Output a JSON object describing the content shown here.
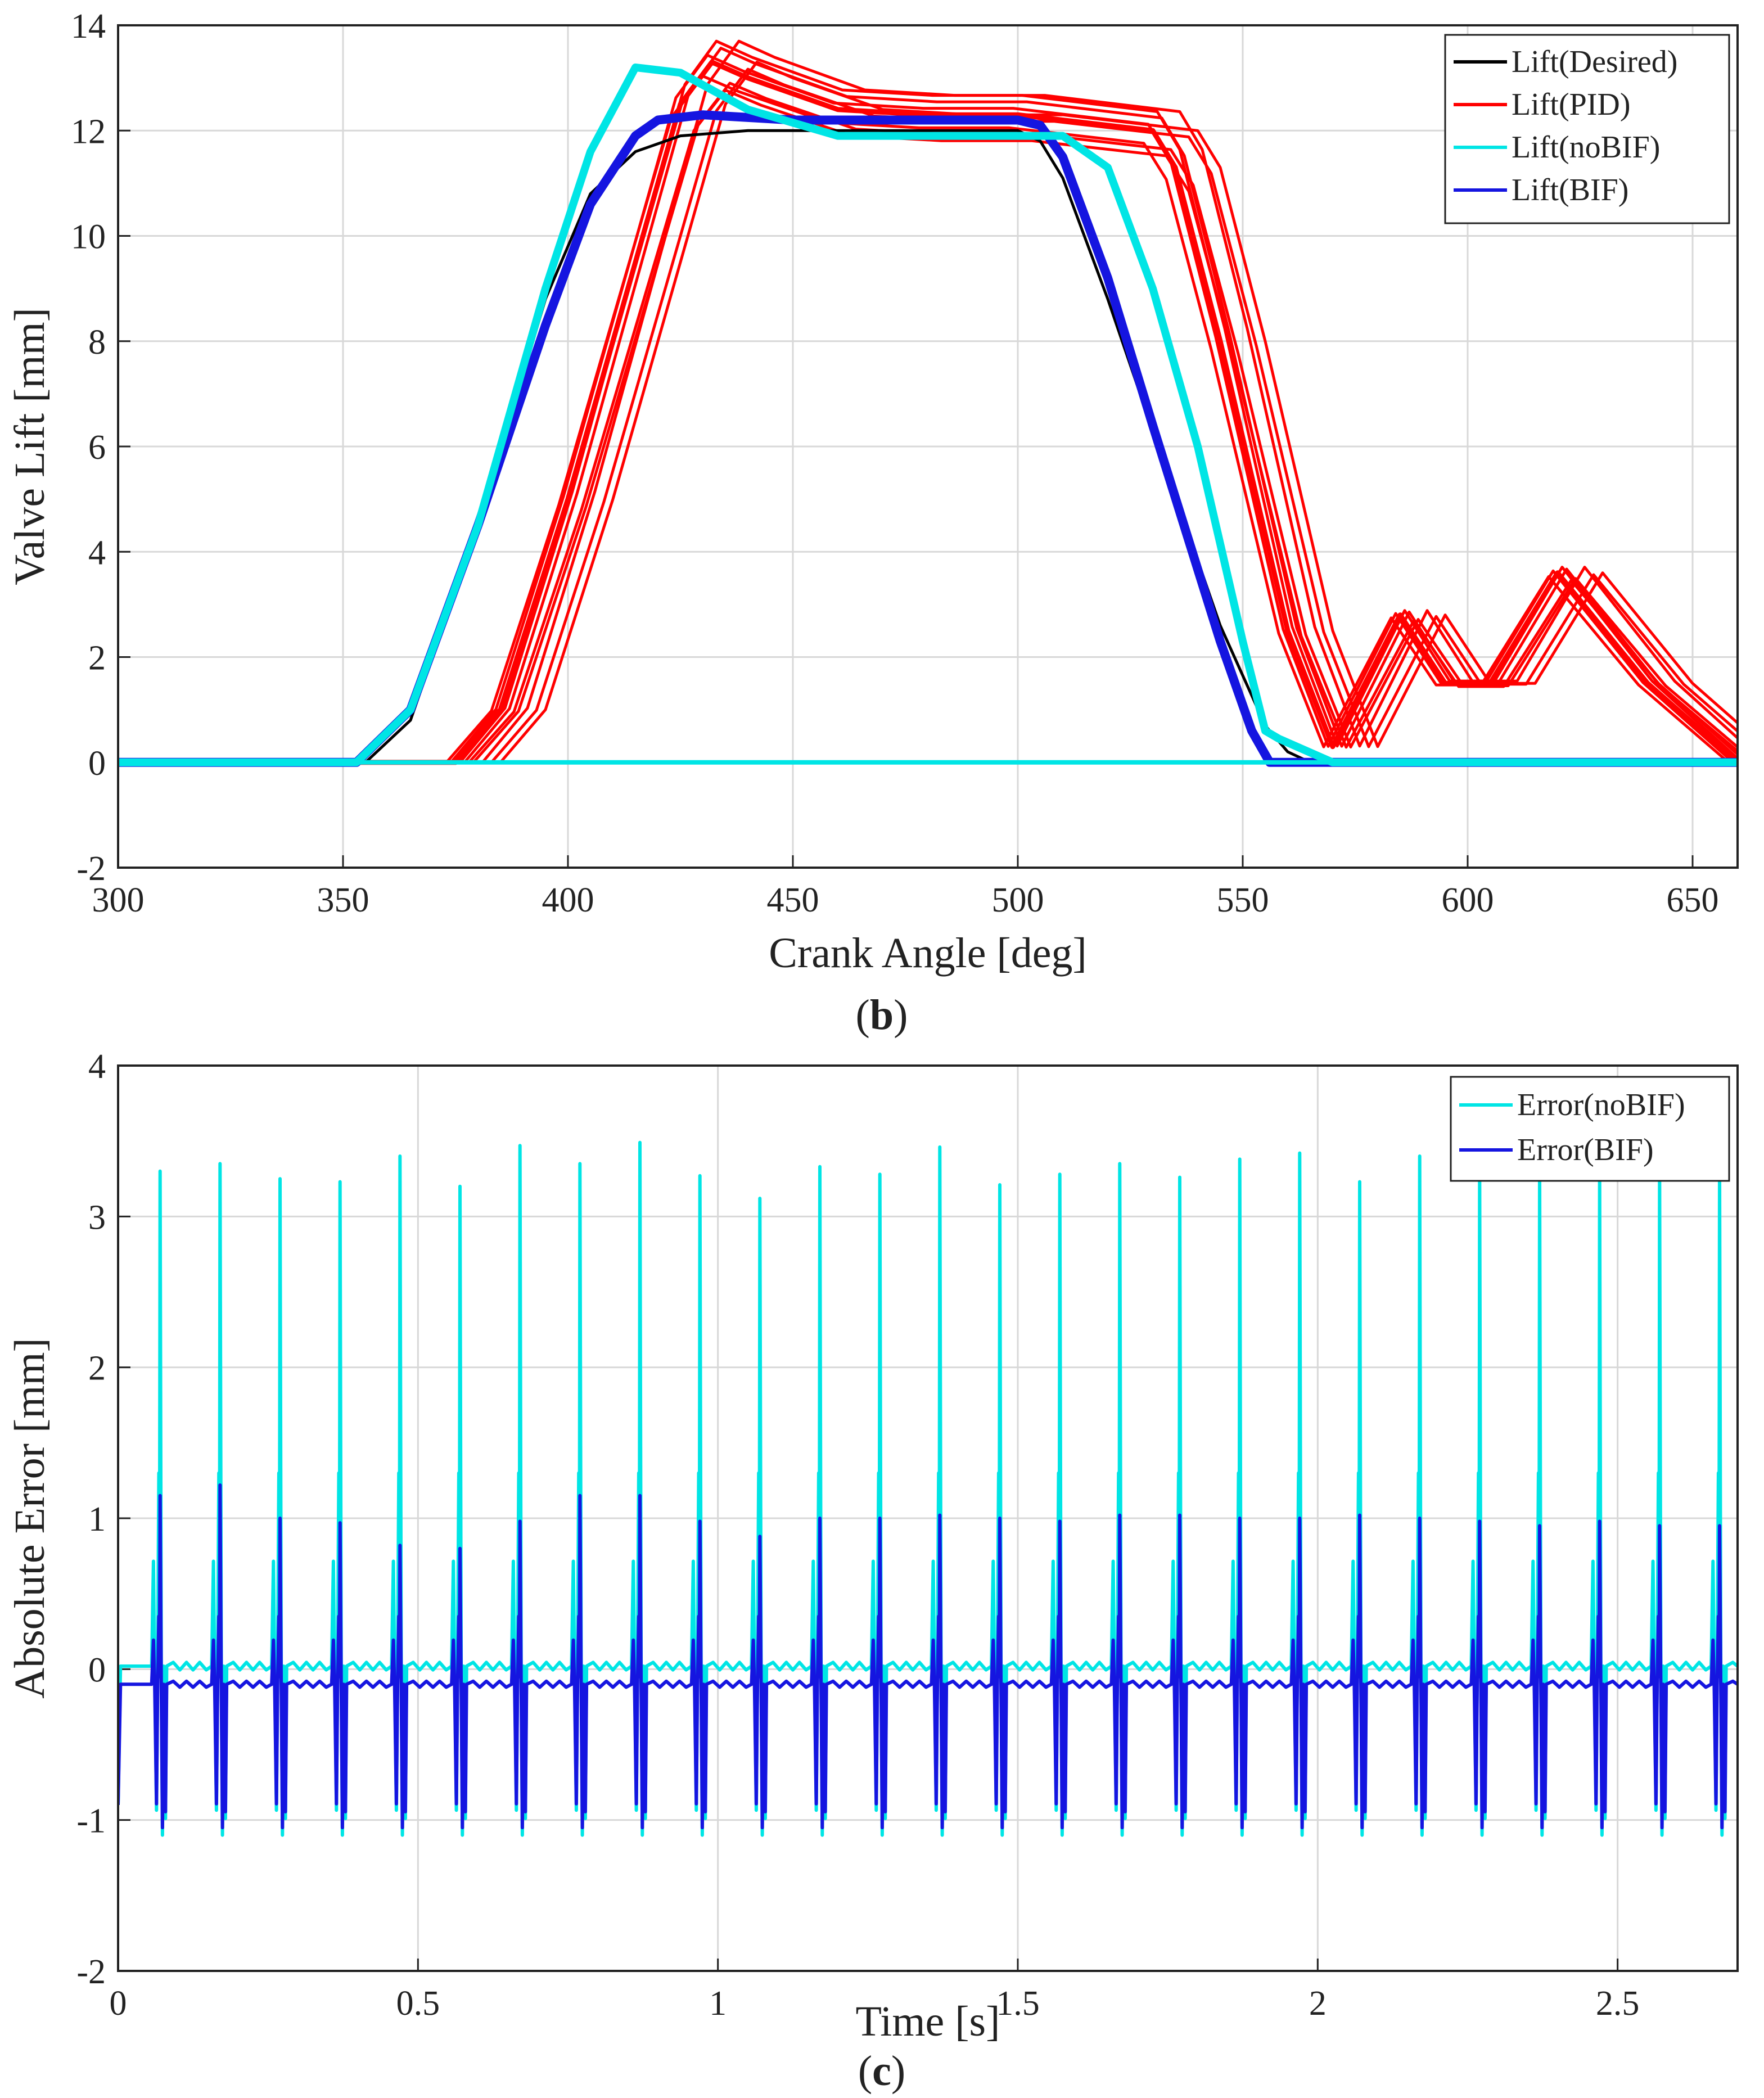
{
  "chart_data": [
    {
      "type": "line",
      "panel_label": "b",
      "xlabel": "Crank Angle [deg]",
      "ylabel": "Valve Lift [mm]",
      "xlim": [
        300,
        660
      ],
      "ylim": [
        -2,
        14
      ],
      "x_ticks": [
        300,
        350,
        400,
        450,
        500,
        550,
        600,
        650
      ],
      "y_ticks": [
        -2,
        0,
        2,
        4,
        6,
        8,
        10,
        12,
        14
      ],
      "grid": true,
      "legend_position": "top-right",
      "series": [
        {
          "name": "Lift(Desired)",
          "color": "#000000",
          "x": [
            300,
            355,
            365,
            380,
            395,
            405,
            415,
            425,
            440,
            500,
            505,
            510,
            520,
            530,
            545,
            555,
            560,
            565,
            660
          ],
          "y": [
            0,
            0,
            0.8,
            4.5,
            8.8,
            10.8,
            11.6,
            11.9,
            12.0,
            12.0,
            11.8,
            11.1,
            8.8,
            6.3,
            2.6,
            0.7,
            0.2,
            0,
            0
          ]
        },
        {
          "name": "Lift(PID)",
          "color": "#ff0000",
          "x": [
            300,
            375,
            385,
            400,
            415,
            425,
            432,
            440,
            460,
            480,
            500,
            530,
            535,
            545,
            560,
            570,
            585,
            595,
            605,
            620,
            640,
            660
          ],
          "y": [
            0,
            0,
            1.0,
            5.0,
            9.5,
            12.5,
            13.3,
            13.0,
            12.4,
            12.3,
            12.3,
            12.0,
            11.3,
            8.0,
            2.5,
            0.3,
            2.8,
            1.5,
            1.5,
            3.6,
            1.5,
            0
          ]
        },
        {
          "name": "Lift(noBIF)",
          "color": "#00e5e5",
          "x": [
            300,
            353,
            365,
            380,
            395,
            405,
            415,
            425,
            440,
            460,
            500,
            510,
            520,
            530,
            540,
            550,
            555,
            558,
            562,
            570,
            660
          ],
          "y": [
            0,
            0,
            1.0,
            4.5,
            9.0,
            11.6,
            13.2,
            13.1,
            12.4,
            11.9,
            11.9,
            11.9,
            11.3,
            9.0,
            6.0,
            2.3,
            0.6,
            0.45,
            0.3,
            0,
            0
          ]
        },
        {
          "name": "Lift(BIF)",
          "color": "#1515e0",
          "x": [
            300,
            353,
            365,
            380,
            395,
            405,
            415,
            420,
            430,
            450,
            500,
            505,
            510,
            520,
            530,
            545,
            552,
            556,
            660
          ],
          "y": [
            0,
            0,
            1.0,
            4.5,
            8.3,
            10.6,
            11.9,
            12.2,
            12.3,
            12.2,
            12.2,
            12.1,
            11.5,
            9.2,
            6.4,
            2.3,
            0.6,
            0,
            0
          ]
        }
      ]
    },
    {
      "type": "line",
      "panel_label": "c",
      "xlabel": "Time [s]",
      "ylabel": "Absolute Error [mm]",
      "xlim": [
        0,
        2.7
      ],
      "ylim": [
        -2,
        4
      ],
      "x_ticks": [
        0,
        0.5,
        1,
        1.5,
        2,
        2.5
      ],
      "y_ticks": [
        -2,
        -1,
        0,
        1,
        2,
        3,
        4
      ],
      "grid": true,
      "legend_position": "top-right",
      "cycle_period_s": 0.1,
      "cycle_start_s": 0.07,
      "baseline": {
        "noBIF": 0.02,
        "BIF": -0.1
      },
      "series": [
        {
          "name": "Error(noBIF)",
          "color": "#00e5e5",
          "peak_values": [
            3.3,
            3.35,
            3.25,
            3.23,
            3.4,
            3.2,
            3.47,
            3.35,
            3.49,
            3.27,
            3.12,
            3.33,
            3.28,
            3.46,
            3.21,
            3.28,
            3.35,
            3.26,
            3.38,
            3.42,
            3.23,
            3.4,
            3.3,
            3.3,
            3.3,
            3.3,
            3.3
          ],
          "pre_peak": 1.3,
          "negative_dip": -1.1
        },
        {
          "name": "Error(BIF)",
          "color": "#1515e0",
          "peak_values": [
            1.15,
            1.22,
            1.0,
            0.97,
            0.82,
            0.8,
            0.98,
            1.15,
            1.15,
            0.98,
            0.88,
            1.0,
            1.0,
            1.02,
            1.0,
            0.98,
            1.02,
            1.02,
            1.0,
            1.0,
            1.02,
            1.0,
            0.98,
            0.95,
            0.98,
            0.95,
            0.95
          ],
          "pre_peak": 0.35,
          "negative_dip": -1.05
        }
      ]
    }
  ]
}
